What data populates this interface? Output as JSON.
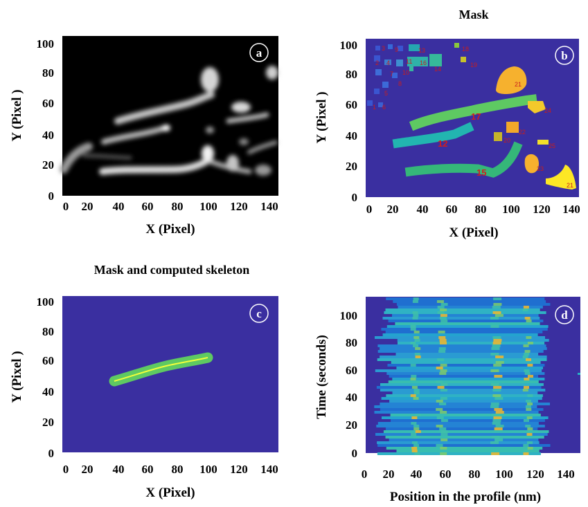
{
  "panels": {
    "a": {
      "letter": "a",
      "title": "",
      "xlabel": "X (Pixel)",
      "ylabel": "Y (Pixel )",
      "xticks": [
        "0",
        "20",
        "40",
        "60",
        "80",
        "100",
        "120",
        "140"
      ],
      "yticks": [
        "0",
        "20",
        "40",
        "60",
        "80",
        "100"
      ]
    },
    "b": {
      "letter": "b",
      "title": "Mask",
      "xlabel": "X (Pixel)",
      "ylabel": "Y (Pixel )",
      "xticks": [
        "0",
        "20",
        "40",
        "60",
        "80",
        "100",
        "120",
        "140"
      ],
      "yticks": [
        "0",
        "20",
        "40",
        "60",
        "80",
        "100"
      ],
      "region_labels": [
        "1",
        "2",
        "3",
        "4",
        "5",
        "6",
        "7",
        "8",
        "9",
        "10",
        "11",
        "12",
        "13",
        "14",
        "15",
        "16",
        "17",
        "18",
        "19",
        "20",
        "21",
        "22",
        "23",
        "24",
        "25",
        "21"
      ]
    },
    "c": {
      "letter": "c",
      "title": "Mask and computed skeleton",
      "xlabel": "X (Pixel)",
      "ylabel": "Y (Pixel )",
      "xticks": [
        "0",
        "20",
        "40",
        "60",
        "80",
        "100",
        "120",
        "140"
      ],
      "yticks": [
        "0",
        "20",
        "40",
        "60",
        "80",
        "100"
      ]
    },
    "d": {
      "letter": "d",
      "title": "",
      "xlabel": "Position in the profile (nm)",
      "ylabel": "Time (seconds)",
      "xticks": [
        "0",
        "20",
        "40",
        "60",
        "80",
        "100",
        "120",
        "140"
      ],
      "yticks": [
        "0",
        "20",
        "40",
        "60",
        "80",
        "100"
      ]
    }
  },
  "colors": {
    "mask_background": "#3a2fa0",
    "filament_green": "#5ec962",
    "filament_teal": "#22b5b0",
    "blob_orange": "#f6b12e",
    "blob_yellow": "#fde725",
    "skeleton": "#f2ff3a",
    "label_red": "#c81e1e"
  }
}
